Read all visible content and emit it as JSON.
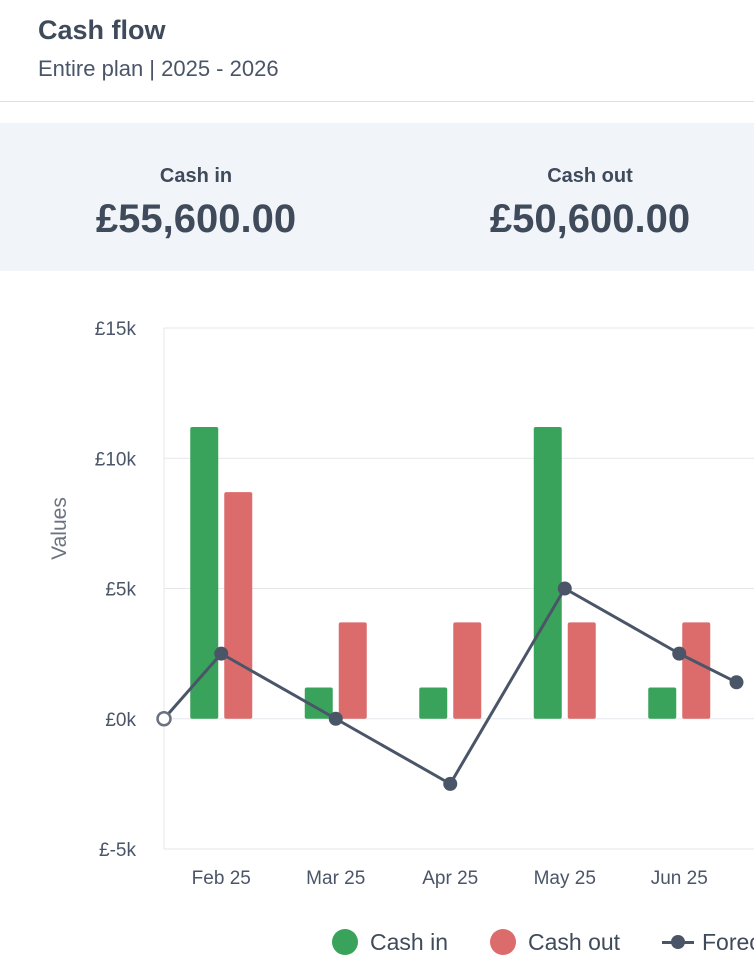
{
  "header": {
    "title": "Cash flow",
    "subtitle": "Entire plan | 2025 - 2026"
  },
  "summary": {
    "cash_in_label": "Cash in",
    "cash_in_value": "£55,600.00",
    "cash_out_label": "Cash out",
    "cash_out_value": "£50,600.00"
  },
  "legend": {
    "cash_in": "Cash in",
    "cash_out": "Cash out",
    "forecast": "Forec"
  },
  "colors": {
    "cash_in": "#3aa35b",
    "cash_out": "#dc6b6b",
    "forecast": "#4a5568",
    "grid": "#e5e7eb"
  },
  "chart_data": {
    "type": "bar",
    "categories": [
      "Feb 25",
      "Mar 25",
      "Apr 25",
      "May 25",
      "Jun 25"
    ],
    "ylabel": "Values",
    "ylim": [
      -5000,
      15000
    ],
    "yticks": [
      -5000,
      0,
      5000,
      10000,
      15000
    ],
    "ytick_labels": [
      "£-5k",
      "£0k",
      "£5k",
      "£10k",
      "£15k"
    ],
    "series": [
      {
        "name": "Cash in",
        "type": "bar",
        "values": [
          11200,
          1200,
          1200,
          11200,
          1200
        ]
      },
      {
        "name": "Cash out",
        "type": "bar",
        "values": [
          8700,
          3700,
          3700,
          3700,
          3700
        ]
      }
    ],
    "line_series": {
      "name": "Forec",
      "type": "line",
      "x": [
        0.0,
        0.5,
        1.5,
        2.5,
        3.5,
        4.5,
        5.0
      ],
      "values": [
        0,
        2500,
        0,
        -2500,
        5000,
        2500,
        1400
      ],
      "hollow_first_point": true
    },
    "grid": true,
    "legend_position": "bottom"
  }
}
